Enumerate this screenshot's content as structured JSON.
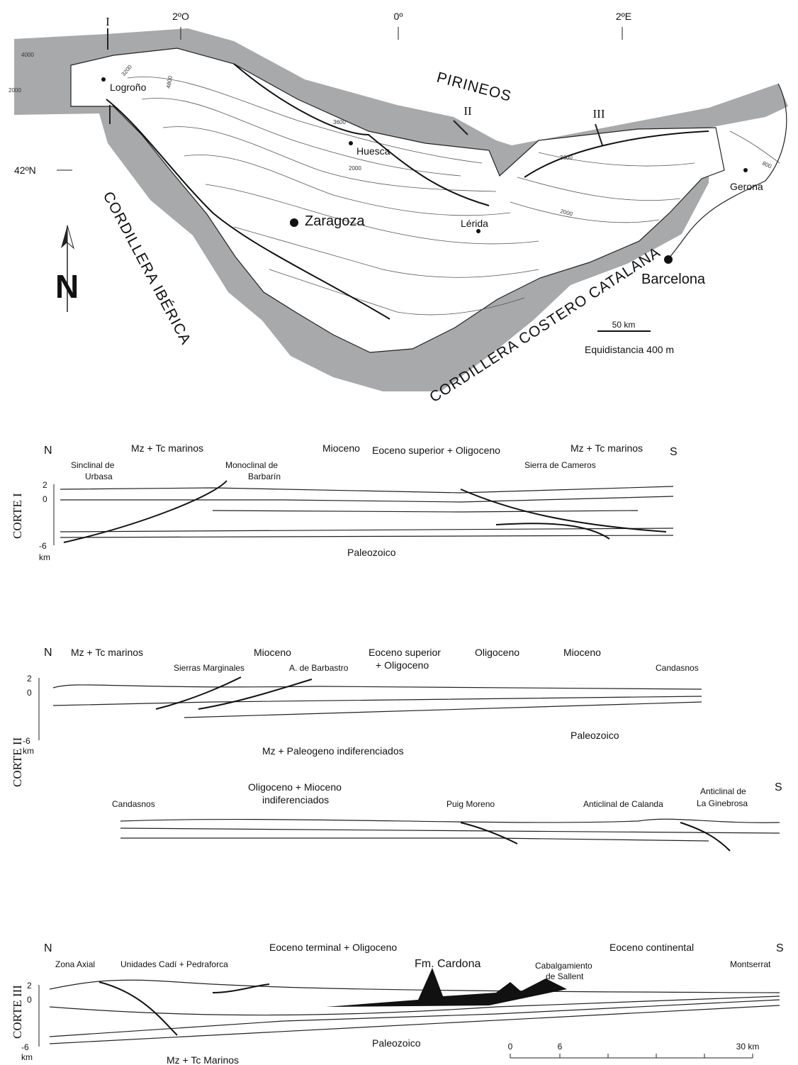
{
  "map": {
    "graticule": {
      "west": "2ºO",
      "center": "0º",
      "east": "2ºE",
      "lat": "42ºN"
    },
    "section_marks": [
      "I",
      "II",
      "III"
    ],
    "cities": [
      "Logroño",
      "Huesca",
      "Zaragoza",
      "Lérida",
      "Gerona",
      "Barcelona"
    ],
    "regions": [
      "PIRINEOS",
      "CORDILLERA IBÉRICA",
      "CORDILLERA COSTERO CATALANA"
    ],
    "contours": [
      "4000",
      "3200",
      "4800",
      "2000",
      "3600",
      "2000",
      "3600",
      "2000",
      "800"
    ],
    "north": "N",
    "scale_bar": "50 km",
    "equidistance": "Equidistancia 400 m"
  },
  "corte_1": {
    "title": "CORTE I",
    "north": "N",
    "south": "S",
    "axis": [
      "2",
      "0",
      "-6",
      "km"
    ],
    "labels": [
      [
        "Sinclinal de",
        "Urbasa"
      ],
      [
        "Mz + Tc marinos"
      ],
      [
        "Monoclinal de",
        "Barbarín"
      ],
      [
        "Mioceno"
      ],
      [
        "Eoceno superior + Oligoceno"
      ],
      [
        "Mz + Tc  marinos"
      ],
      [
        "Sierra de Cameros"
      ],
      [
        "Paleozoico"
      ]
    ]
  },
  "corte_2": {
    "title": "CORTE II",
    "north": "N",
    "south": "S",
    "axis": [
      "2",
      "0",
      "-6",
      "km"
    ],
    "labels": [
      [
        "Mz + Tc marinos"
      ],
      [
        "Sierras Marginales"
      ],
      [
        "Mioceno"
      ],
      [
        "A. de Barbastro"
      ],
      [
        "Eoceno superior",
        "+ Oligoceno"
      ],
      [
        "Oligoceno"
      ],
      [
        "Mioceno"
      ],
      [
        "Candasnos"
      ],
      [
        "Paleozoico"
      ],
      [
        "Mz + Paleogeno  indiferenciados"
      ]
    ],
    "labels_lower": [
      [
        "Candasnos"
      ],
      [
        "Oligoceno + Mioceno",
        "indiferenciados"
      ],
      [
        "Puig Moreno"
      ],
      [
        "Anticlinal de Calanda"
      ],
      [
        "Anticlinal de",
        "La Ginebrosa"
      ]
    ]
  },
  "corte_3": {
    "title": "CORTE III",
    "north": "N",
    "south": "S",
    "axis": [
      "2",
      "0",
      "-6",
      "km"
    ],
    "labels": [
      [
        "Zona Axial"
      ],
      [
        "Unidades Cadí + Pedraforca"
      ],
      [
        "Eoceno terminal + Oligoceno"
      ],
      [
        "Fm. Cardona"
      ],
      [
        "Cabalgamiento",
        "de Sallent"
      ],
      [
        "Eoceno continental"
      ],
      [
        "Montserrat"
      ],
      [
        "Paleozoico"
      ],
      [
        "Mz + Tc Marinos"
      ]
    ],
    "scale": [
      "0",
      "6",
      "30 km"
    ]
  }
}
